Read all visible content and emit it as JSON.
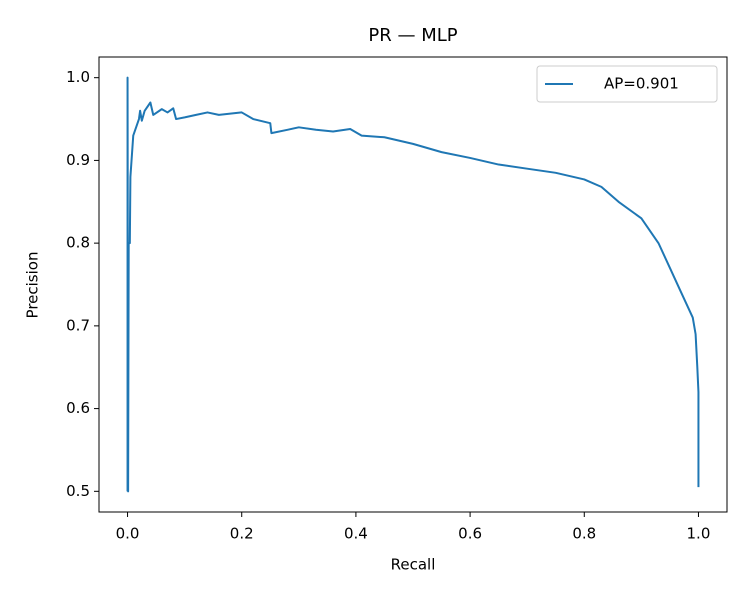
{
  "chart_data": {
    "type": "line",
    "title": "PR — MLP",
    "xlabel": "Recall",
    "ylabel": "Precision",
    "x": [
      0,
      0,
      0.001,
      0.002,
      0.004,
      0.005,
      0.01,
      0.02,
      0.022,
      0.025,
      0.03,
      0.04,
      0.045,
      0.06,
      0.07,
      0.08,
      0.085,
      0.1,
      0.12,
      0.14,
      0.16,
      0.2,
      0.22,
      0.25,
      0.252,
      0.28,
      0.3,
      0.33,
      0.36,
      0.39,
      0.41,
      0.45,
      0.5,
      0.55,
      0.6,
      0.65,
      0.7,
      0.75,
      0.8,
      0.83,
      0.86,
      0.9,
      0.93,
      0.95,
      0.97,
      0.99,
      0.995,
      0.998,
      1.0,
      1.0
    ],
    "series": [
      {
        "name": "AP=0.901",
        "color": "#1f77b4",
        "values": [
          0.5,
          1.0,
          0.5,
          0.8,
          0.8,
          0.88,
          0.93,
          0.95,
          0.96,
          0.948,
          0.96,
          0.97,
          0.955,
          0.962,
          0.958,
          0.963,
          0.95,
          0.952,
          0.955,
          0.958,
          0.955,
          0.958,
          0.95,
          0.945,
          0.933,
          0.937,
          0.94,
          0.937,
          0.935,
          0.938,
          0.93,
          0.928,
          0.92,
          0.91,
          0.903,
          0.895,
          0.89,
          0.885,
          0.877,
          0.868,
          0.85,
          0.83,
          0.8,
          0.77,
          0.74,
          0.71,
          0.69,
          0.65,
          0.62,
          0.505
        ]
      }
    ],
    "xlim": [
      -0.05,
      1.05
    ],
    "ylim": [
      0.475,
      1.025
    ],
    "xticks": [
      {
        "value": 0,
        "label": "0.0"
      },
      0.2,
      0.4,
      0.6,
      0.8,
      {
        "value": 1,
        "label": "1.0"
      }
    ],
    "yticks": [
      {
        "value": 0.5,
        "label": "0.5"
      },
      0.6,
      0.7,
      0.8,
      0.9,
      {
        "value": 1,
        "label": "1.0"
      }
    ],
    "legend": "upper right"
  }
}
